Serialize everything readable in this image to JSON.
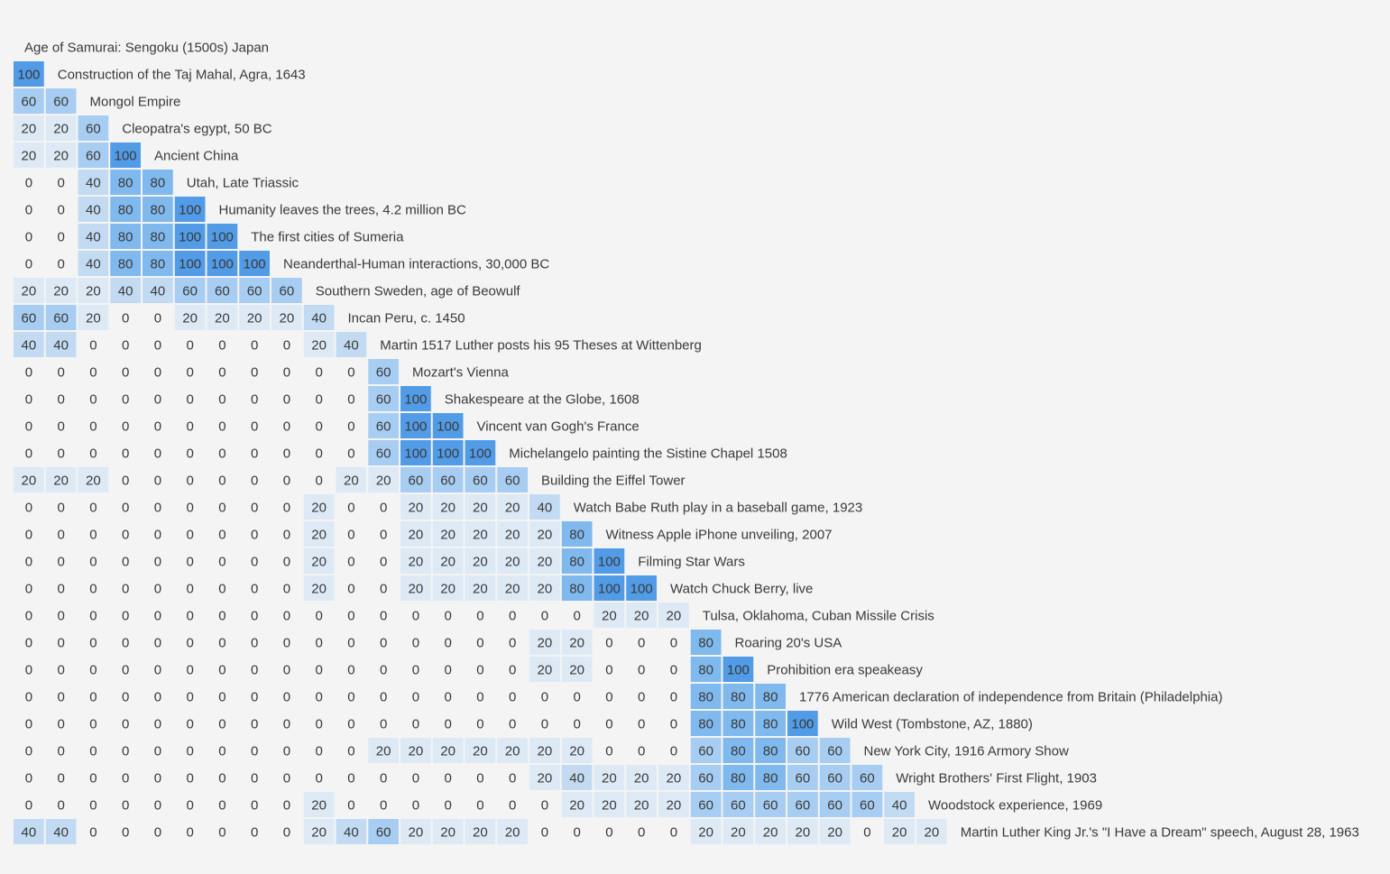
{
  "chart_data": {
    "type": "heatmap",
    "color_scale": {
      "0": "none",
      "20": "#ddeaf5",
      "40": "#c2dbf2",
      "60": "#a7cdf2",
      "80": "#80b9ee",
      "100": "#529be6"
    },
    "text_color": "#3a3a3a",
    "rows": [
      {
        "label": "Age of Samurai: Sengoku (1500s) Japan",
        "values": []
      },
      {
        "label": "Construction of the Taj Mahal, Agra, 1643",
        "values": [
          100
        ]
      },
      {
        "label": "Mongol Empire",
        "values": [
          60,
          60
        ]
      },
      {
        "label": "Cleopatra's egypt, 50 BC",
        "values": [
          20,
          20,
          60
        ]
      },
      {
        "label": "Ancient China",
        "values": [
          20,
          20,
          60,
          100
        ]
      },
      {
        "label": "Utah, Late Triassic",
        "values": [
          0,
          0,
          40,
          80,
          80
        ]
      },
      {
        "label": "Humanity leaves the trees, 4.2 million BC",
        "values": [
          0,
          0,
          40,
          80,
          80,
          100
        ]
      },
      {
        "label": "The first cities of Sumeria",
        "values": [
          0,
          0,
          40,
          80,
          80,
          100,
          100
        ]
      },
      {
        "label": "Neanderthal-Human interactions, 30,000 BC",
        "values": [
          0,
          0,
          40,
          80,
          80,
          100,
          100,
          100
        ]
      },
      {
        "label": "Southern Sweden, age of Beowulf",
        "values": [
          20,
          20,
          20,
          40,
          40,
          60,
          60,
          60,
          60
        ]
      },
      {
        "label": "Incan Peru, c. 1450",
        "values": [
          60,
          60,
          20,
          0,
          0,
          20,
          20,
          20,
          20,
          40
        ]
      },
      {
        "label": "Martin 1517 Luther posts his 95 Theses at Wittenberg",
        "values": [
          40,
          40,
          0,
          0,
          0,
          0,
          0,
          0,
          0,
          20,
          40
        ]
      },
      {
        "label": "Mozart's Vienna",
        "values": [
          0,
          0,
          0,
          0,
          0,
          0,
          0,
          0,
          0,
          0,
          0,
          60
        ]
      },
      {
        "label": "Shakespeare at the Globe, 1608",
        "values": [
          0,
          0,
          0,
          0,
          0,
          0,
          0,
          0,
          0,
          0,
          0,
          60,
          100
        ]
      },
      {
        "label": "Vincent van Gogh's France",
        "values": [
          0,
          0,
          0,
          0,
          0,
          0,
          0,
          0,
          0,
          0,
          0,
          60,
          100,
          100
        ]
      },
      {
        "label": "Michelangelo painting the Sistine Chapel 1508",
        "values": [
          0,
          0,
          0,
          0,
          0,
          0,
          0,
          0,
          0,
          0,
          0,
          60,
          100,
          100,
          100
        ]
      },
      {
        "label": "Building the Eiffel Tower",
        "values": [
          20,
          20,
          20,
          0,
          0,
          0,
          0,
          0,
          0,
          0,
          20,
          20,
          60,
          60,
          60,
          60
        ]
      },
      {
        "label": "Watch Babe Ruth play in a baseball game, 1923",
        "values": [
          0,
          0,
          0,
          0,
          0,
          0,
          0,
          0,
          0,
          20,
          0,
          0,
          20,
          20,
          20,
          20,
          40
        ]
      },
      {
        "label": "Witness Apple iPhone unveiling, 2007",
        "values": [
          0,
          0,
          0,
          0,
          0,
          0,
          0,
          0,
          0,
          20,
          0,
          0,
          20,
          20,
          20,
          20,
          20,
          80
        ]
      },
      {
        "label": "Filming Star Wars",
        "values": [
          0,
          0,
          0,
          0,
          0,
          0,
          0,
          0,
          0,
          20,
          0,
          0,
          20,
          20,
          20,
          20,
          20,
          80,
          100
        ]
      },
      {
        "label": "Watch Chuck Berry, live",
        "values": [
          0,
          0,
          0,
          0,
          0,
          0,
          0,
          0,
          0,
          20,
          0,
          0,
          20,
          20,
          20,
          20,
          20,
          80,
          100,
          100
        ]
      },
      {
        "label": "Tulsa, Oklahoma, Cuban Missile Crisis",
        "values": [
          0,
          0,
          0,
          0,
          0,
          0,
          0,
          0,
          0,
          0,
          0,
          0,
          0,
          0,
          0,
          0,
          0,
          0,
          20,
          20,
          20
        ]
      },
      {
        "label": "Roaring 20's USA",
        "values": [
          0,
          0,
          0,
          0,
          0,
          0,
          0,
          0,
          0,
          0,
          0,
          0,
          0,
          0,
          0,
          0,
          20,
          20,
          0,
          0,
          0,
          80
        ]
      },
      {
        "label": "Prohibition era speakeasy",
        "values": [
          0,
          0,
          0,
          0,
          0,
          0,
          0,
          0,
          0,
          0,
          0,
          0,
          0,
          0,
          0,
          0,
          20,
          20,
          0,
          0,
          0,
          80,
          100
        ]
      },
      {
        "label": "1776 American declaration of independence from Britain (Philadelphia)",
        "values": [
          0,
          0,
          0,
          0,
          0,
          0,
          0,
          0,
          0,
          0,
          0,
          0,
          0,
          0,
          0,
          0,
          0,
          0,
          0,
          0,
          0,
          80,
          80,
          80
        ]
      },
      {
        "label": "Wild West (Tombstone, AZ, 1880)",
        "values": [
          0,
          0,
          0,
          0,
          0,
          0,
          0,
          0,
          0,
          0,
          0,
          0,
          0,
          0,
          0,
          0,
          0,
          0,
          0,
          0,
          0,
          80,
          80,
          80,
          100
        ]
      },
      {
        "label": "New York City, 1916 Armory Show",
        "values": [
          0,
          0,
          0,
          0,
          0,
          0,
          0,
          0,
          0,
          0,
          0,
          20,
          20,
          20,
          20,
          20,
          20,
          20,
          0,
          0,
          0,
          60,
          80,
          80,
          60,
          60
        ]
      },
      {
        "label": "Wright Brothers' First Flight, 1903",
        "values": [
          0,
          0,
          0,
          0,
          0,
          0,
          0,
          0,
          0,
          0,
          0,
          0,
          0,
          0,
          0,
          0,
          20,
          40,
          20,
          20,
          20,
          60,
          80,
          80,
          60,
          60,
          60
        ]
      },
      {
        "label": "Woodstock experience, 1969",
        "values": [
          0,
          0,
          0,
          0,
          0,
          0,
          0,
          0,
          0,
          20,
          0,
          0,
          0,
          0,
          0,
          0,
          0,
          20,
          20,
          20,
          20,
          60,
          60,
          60,
          60,
          60,
          60,
          40
        ]
      },
      {
        "label": "Martin Luther King Jr.'s \"I Have a Dream\" speech, August 28, 1963",
        "values": [
          40,
          40,
          0,
          0,
          0,
          0,
          0,
          0,
          0,
          20,
          40,
          60,
          20,
          20,
          20,
          20,
          0,
          0,
          0,
          0,
          0,
          20,
          20,
          20,
          20,
          20,
          0,
          20,
          20
        ]
      }
    ]
  }
}
